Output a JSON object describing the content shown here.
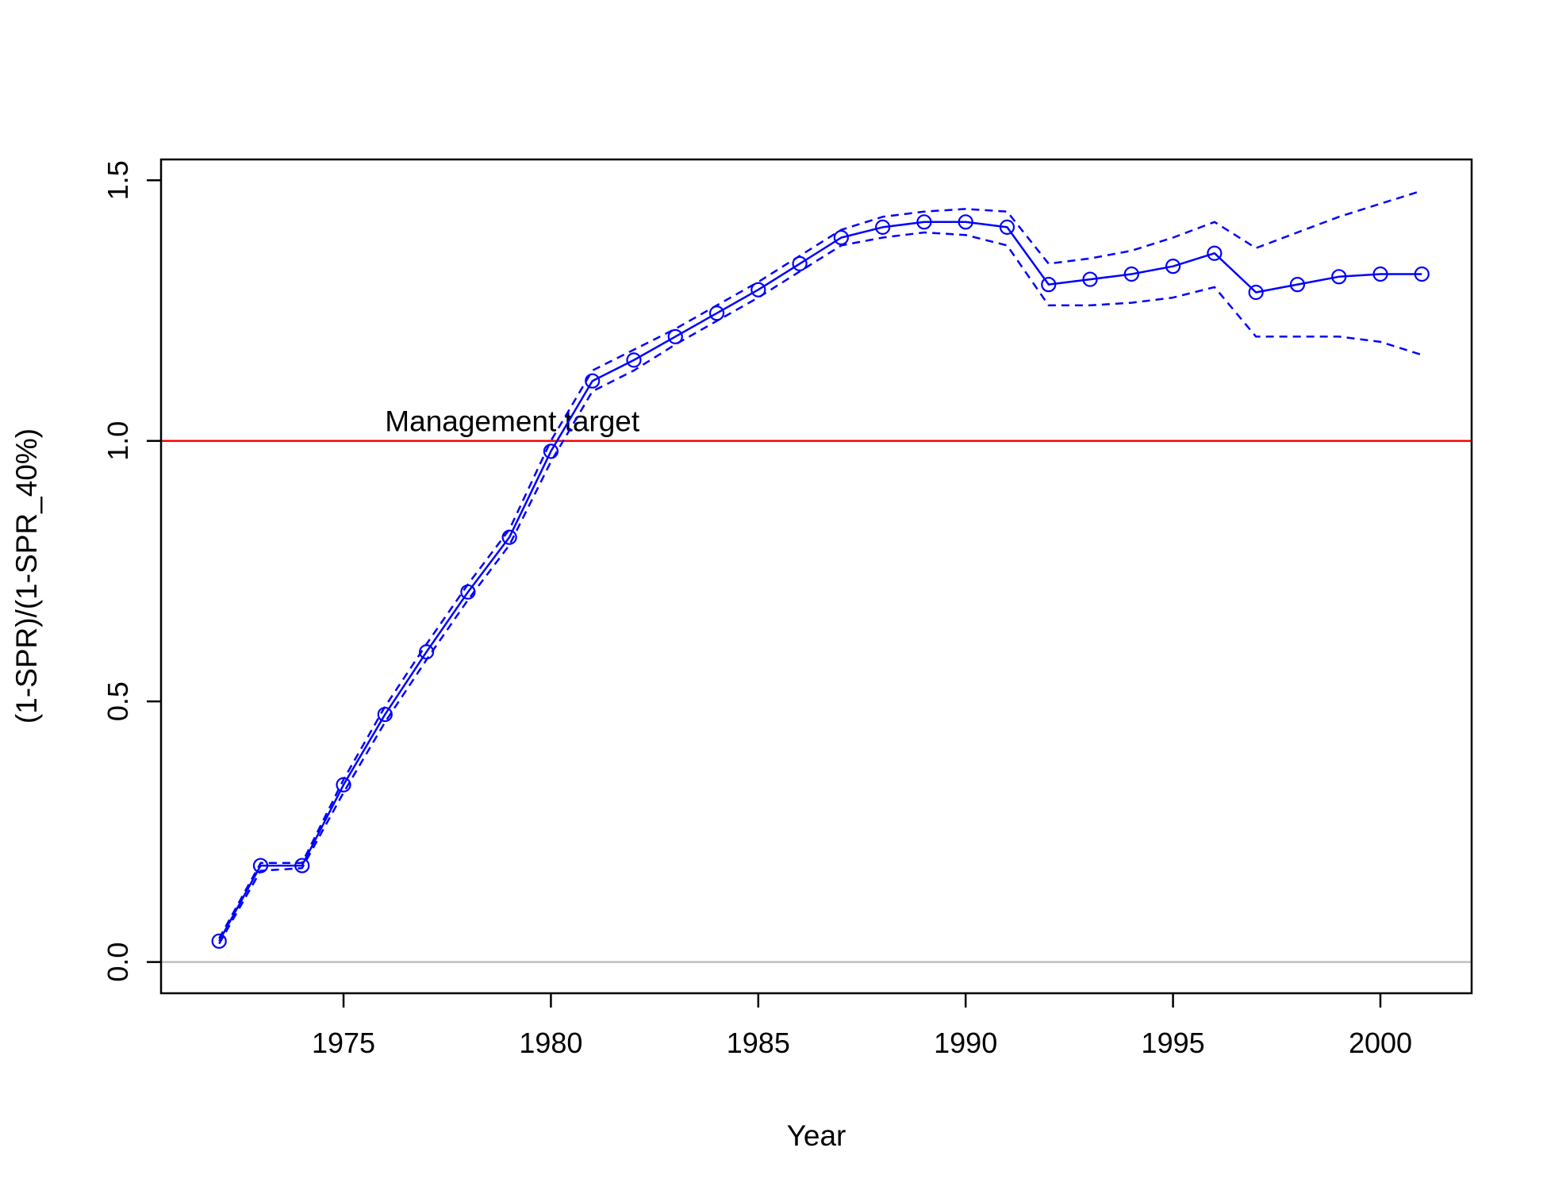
{
  "chart_data": {
    "type": "line",
    "title": "",
    "xlabel": "Year",
    "ylabel": "(1-SPR)/(1-SPR_40%)",
    "xlim": [
      1970.6,
      2002.2
    ],
    "ylim": [
      -0.06,
      1.54
    ],
    "x_ticks": [
      1975,
      1980,
      1985,
      1990,
      1995,
      2000
    ],
    "y_ticks": [
      0.0,
      0.5,
      1.0,
      1.5
    ],
    "x_tick_labels": [
      "1975",
      "1980",
      "1985",
      "1990",
      "1995",
      "2000"
    ],
    "y_tick_labels": [
      "0.0",
      "0.5",
      "1.0",
      "1.5"
    ],
    "grid": false,
    "x": [
      1972,
      1973,
      1974,
      1975,
      1976,
      1977,
      1978,
      1979,
      1980,
      1981,
      1982,
      1983,
      1984,
      1985,
      1986,
      1987,
      1988,
      1989,
      1990,
      1991,
      1992,
      1993,
      1994,
      1995,
      1996,
      1997,
      1998,
      1999,
      2000,
      2001
    ],
    "series": [
      {
        "role": "estimate",
        "style": "solid line with open circles",
        "color": "#0000ff",
        "values": [
          0.04,
          0.185,
          0.185,
          0.34,
          0.475,
          0.595,
          0.71,
          0.815,
          0.98,
          1.115,
          1.155,
          1.2,
          1.245,
          1.29,
          1.34,
          1.39,
          1.41,
          1.42,
          1.42,
          1.41,
          1.3,
          1.31,
          1.32,
          1.335,
          1.36,
          1.285,
          1.3,
          1.315,
          1.32,
          1.32
        ]
      },
      {
        "role": "upper interval",
        "style": "dashed line",
        "color": "#0000ff",
        "values": [
          0.045,
          0.19,
          0.19,
          0.35,
          0.49,
          0.61,
          0.725,
          0.83,
          1.0,
          1.135,
          1.175,
          1.215,
          1.26,
          1.305,
          1.355,
          1.405,
          1.43,
          1.44,
          1.445,
          1.44,
          1.34,
          1.35,
          1.365,
          1.39,
          1.42,
          1.37,
          1.4,
          1.43,
          1.455,
          1.48
        ]
      },
      {
        "role": "lower interval",
        "style": "dashed line",
        "color": "#0000ff",
        "values": [
          0.035,
          0.175,
          0.18,
          0.325,
          0.46,
          0.58,
          0.695,
          0.8,
          0.96,
          1.095,
          1.135,
          1.185,
          1.23,
          1.275,
          1.325,
          1.375,
          1.39,
          1.4,
          1.395,
          1.375,
          1.26,
          1.26,
          1.265,
          1.275,
          1.295,
          1.2,
          1.2,
          1.2,
          1.19,
          1.165
        ]
      }
    ],
    "reference_lines": [
      {
        "y": 1.0,
        "color": "#ff0000",
        "label": "Management target",
        "label_x": 1976
      },
      {
        "y": 0.0,
        "color": "#bebebe"
      }
    ]
  }
}
